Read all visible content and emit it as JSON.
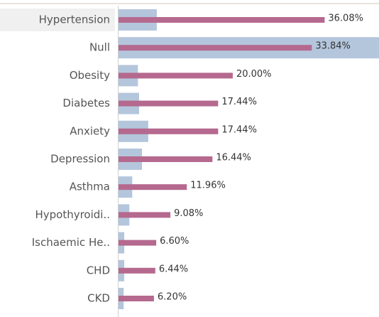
{
  "chart_data": {
    "type": "bar-in-bar",
    "categories": [
      "Hypertension",
      "Null",
      "Obesity",
      "Diabetes",
      "Anxiety",
      "Depression",
      "Asthma",
      "Hypothyroidi..",
      "Ischaemic He..",
      "CHD",
      "CKD"
    ],
    "series": [
      {
        "color": "#b4c6dc",
        "values": [
          6.7,
          45.6,
          3.4,
          3.6,
          5.2,
          4.1,
          2.4,
          1.9,
          1.0,
          1.0,
          0.9
        ]
      },
      {
        "color": "#b5698e",
        "values": [
          36.08,
          33.84,
          20.0,
          17.44,
          17.44,
          16.44,
          11.96,
          9.08,
          6.6,
          6.44,
          6.2
        ],
        "value_labels": [
          "36.08%",
          "33.84%",
          "20.00%",
          "17.44%",
          "17.44%",
          "16.44%",
          "11.96%",
          "9.08%",
          "6.60%",
          "6.44%",
          "6.20%"
        ]
      }
    ],
    "xlim": [
      0,
      45.6
    ]
  }
}
